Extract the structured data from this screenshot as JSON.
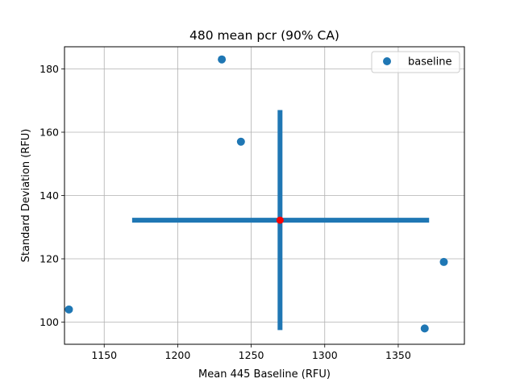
{
  "chart_data": {
    "type": "scatter",
    "title": "480 mean pcr (90% CA)",
    "xlabel": "Mean 445 Baseline (RFU)",
    "ylabel": "Standard Deviation (RFU)",
    "xlim": [
      1123,
      1395
    ],
    "ylim": [
      93,
      187
    ],
    "xticks": [
      1150,
      1200,
      1250,
      1300,
      1350
    ],
    "yticks": [
      100,
      120,
      140,
      160,
      180
    ],
    "grid": true,
    "legend_position": "top-right",
    "series": [
      {
        "name": "baseline",
        "color": "#1f77b4",
        "points": [
          {
            "x": 1126,
            "y": 104
          },
          {
            "x": 1230,
            "y": 183
          },
          {
            "x": 1243,
            "y": 157
          },
          {
            "x": 1368,
            "y": 98
          },
          {
            "x": 1381,
            "y": 119
          }
        ]
      }
    ],
    "center": {
      "x": 1269.6,
      "y": 132.2,
      "color": "#ff0000"
    },
    "error_bars": {
      "color": "#1f77b4",
      "x_range": [
        1169,
        1371
      ],
      "y_range": [
        97.5,
        167
      ]
    }
  }
}
